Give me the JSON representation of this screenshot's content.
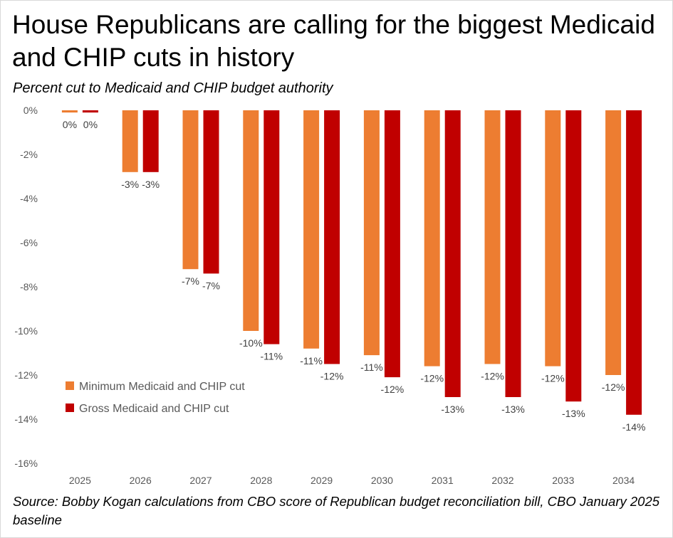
{
  "chart_data": {
    "type": "bar",
    "title": "House Republicans are calling for the biggest Medicaid and CHIP cuts in history",
    "subtitle": "Percent cut to Medicaid and CHIP budget authority",
    "source": "Source: Bobby Kogan calculations from CBO score of Republican budget reconciliation bill, CBO January 2025 baseline",
    "categories": [
      "2025",
      "2026",
      "2027",
      "2028",
      "2029",
      "2030",
      "2031",
      "2032",
      "2033",
      "2034"
    ],
    "series": [
      {
        "name": "Minimum Medicaid and CHIP cut",
        "color": "#ED7D31",
        "values": [
          -0.1,
          -2.8,
          -7.2,
          -10.0,
          -10.8,
          -11.1,
          -11.6,
          -11.5,
          -11.6,
          -12.0
        ],
        "labels": [
          "0%",
          "-3%",
          "-7%",
          "-10%",
          "-11%",
          "-11%",
          "-12%",
          "-12%",
          "-12%",
          "-12%"
        ]
      },
      {
        "name": "Gross Medicaid and CHIP cut",
        "color": "#C00000",
        "values": [
          -0.1,
          -2.8,
          -7.4,
          -10.6,
          -11.5,
          -12.1,
          -13.0,
          -13.0,
          -13.2,
          -13.8
        ],
        "labels": [
          "0%",
          "-3%",
          "-7%",
          "-11%",
          "-12%",
          "-12%",
          "-13%",
          "-13%",
          "-13%",
          "-14%"
        ]
      }
    ],
    "ylim": [
      -16,
      0
    ],
    "y_ticks": [
      0,
      -2,
      -4,
      -6,
      -8,
      -10,
      -12,
      -14,
      -16
    ],
    "y_tick_labels": [
      "0%",
      "-2%",
      "-4%",
      "-6%",
      "-8%",
      "-10%",
      "-12%",
      "-14%",
      "-16%"
    ],
    "xlabel": "",
    "ylabel": "",
    "grid": false,
    "legend_position": "bottom-left"
  }
}
